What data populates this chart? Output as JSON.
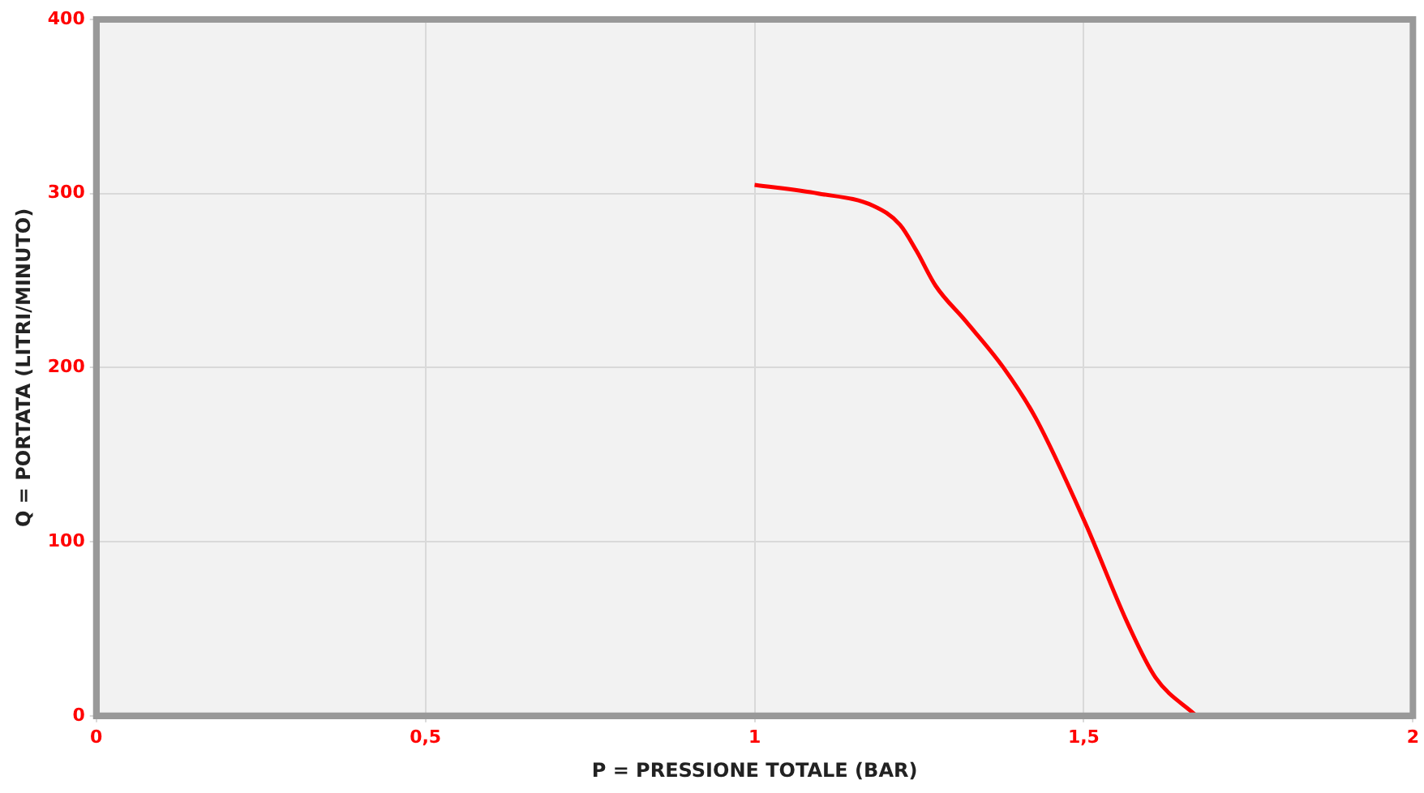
{
  "chart_data": {
    "type": "line",
    "xlabel": "P = PRESSIONE TOTALE (BAR)",
    "ylabel": "Q = PORTATA (LITRI/MINUTO)",
    "x": [
      1.0,
      1.097,
      1.18,
      1.221,
      1.246,
      1.275,
      1.32,
      1.378,
      1.427,
      1.502,
      1.568,
      1.609,
      1.671
    ],
    "series": [
      {
        "color": "#ff0000",
        "values": [
          305,
          300,
          293,
          282,
          267,
          247,
          227,
          200,
          171,
          111,
          52,
          22,
          0
        ]
      }
    ],
    "xlim": [
      0,
      2
    ],
    "xticks": [
      0,
      {
        "value": 0.5,
        "label": "0,5"
      },
      1,
      {
        "value": 1.5,
        "label": "1,5"
      },
      2
    ],
    "ylim": [
      0,
      400
    ],
    "yticks": [
      0,
      100,
      200,
      300,
      400
    ],
    "grid": true,
    "legend": false,
    "marker": "none",
    "line_style": "solid"
  }
}
